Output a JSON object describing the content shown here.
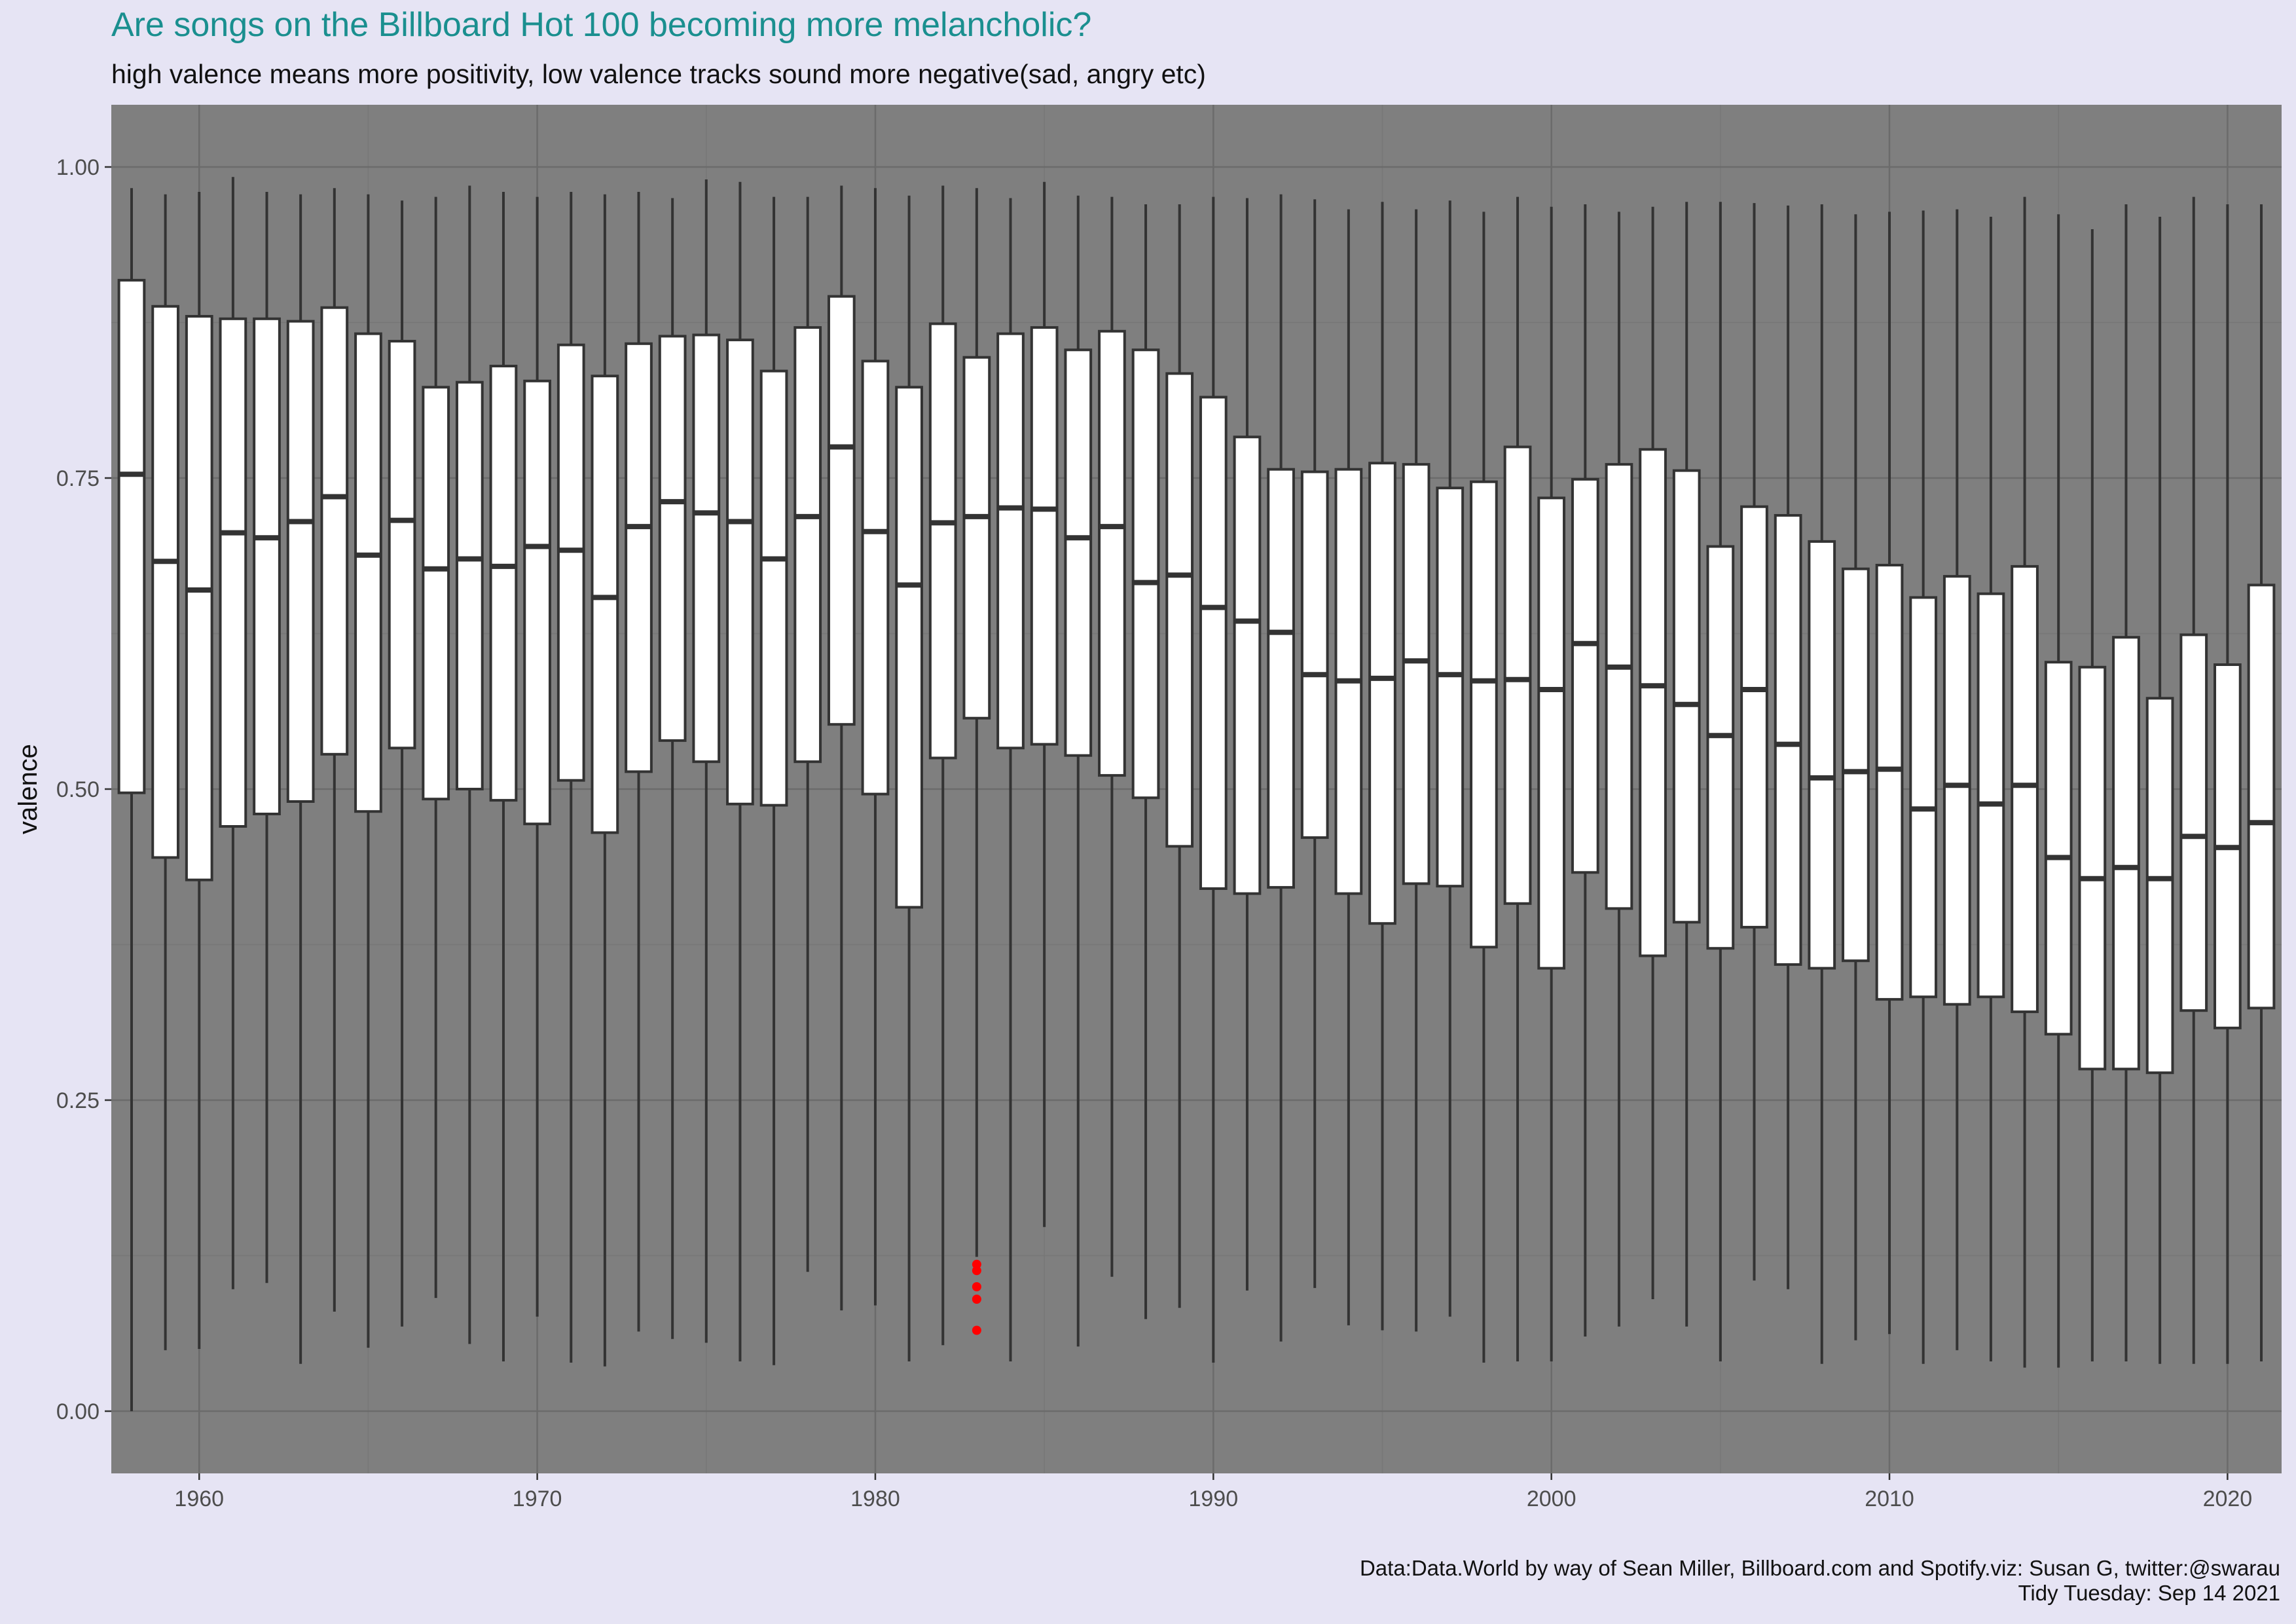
{
  "header": {
    "title": "Are songs on the Billboard Hot 100 becoming more melancholic?",
    "subtitle": "high valence means more positivity, low valence tracks sound more negative(sad, angry etc)"
  },
  "caption": {
    "line1": "Data:Data.World by way of Sean Miller, Billboard.com and Spotify.viz: Susan G, twitter:@swarau",
    "line2": "Tidy Tuesday: Sep 14 2021"
  },
  "colors": {
    "panel": "#7f7f7f",
    "box_fill": "#ffffff",
    "box_line": "#333333",
    "outlier": "#ff0000",
    "grid_major": "#6b6b6b",
    "grid_minor": "#777777",
    "title": "#1a8f8f"
  },
  "chart_data": {
    "type": "boxplot",
    "xlabel": "",
    "ylabel": "valence",
    "xlim": [
      1957.4,
      2021.6
    ],
    "ylim": [
      -0.05,
      1.05
    ],
    "x_ticks": [
      1960,
      1970,
      1980,
      1990,
      2000,
      2010,
      2020
    ],
    "y_ticks": [
      0.0,
      0.25,
      0.5,
      0.75,
      1.0
    ],
    "y_tick_labels": [
      "0.00",
      "0.25",
      "0.50",
      "0.75",
      "1.00"
    ],
    "grid": true,
    "legend": "none",
    "boxes": [
      {
        "year": 1958,
        "min": 0.0,
        "q1": 0.497,
        "median": 0.753,
        "q3": 0.909,
        "max": 0.983
      },
      {
        "year": 1959,
        "min": 0.049,
        "q1": 0.445,
        "median": 0.683,
        "q3": 0.888,
        "max": 0.978
      },
      {
        "year": 1960,
        "min": 0.05,
        "q1": 0.427,
        "median": 0.66,
        "q3": 0.88,
        "max": 0.98
      },
      {
        "year": 1961,
        "min": 0.098,
        "q1": 0.47,
        "median": 0.706,
        "q3": 0.878,
        "max": 0.992
      },
      {
        "year": 1962,
        "min": 0.103,
        "q1": 0.48,
        "median": 0.702,
        "q3": 0.878,
        "max": 0.98
      },
      {
        "year": 1963,
        "min": 0.038,
        "q1": 0.49,
        "median": 0.715,
        "q3": 0.876,
        "max": 0.978
      },
      {
        "year": 1964,
        "min": 0.08,
        "q1": 0.528,
        "median": 0.735,
        "q3": 0.887,
        "max": 0.983
      },
      {
        "year": 1965,
        "min": 0.051,
        "q1": 0.482,
        "median": 0.688,
        "q3": 0.866,
        "max": 0.978
      },
      {
        "year": 1966,
        "min": 0.068,
        "q1": 0.533,
        "median": 0.716,
        "q3": 0.86,
        "max": 0.973
      },
      {
        "year": 1967,
        "min": 0.091,
        "q1": 0.492,
        "median": 0.677,
        "q3": 0.823,
        "max": 0.976
      },
      {
        "year": 1968,
        "min": 0.054,
        "q1": 0.5,
        "median": 0.685,
        "q3": 0.827,
        "max": 0.985
      },
      {
        "year": 1969,
        "min": 0.04,
        "q1": 0.491,
        "median": 0.679,
        "q3": 0.84,
        "max": 0.98
      },
      {
        "year": 1970,
        "min": 0.076,
        "q1": 0.472,
        "median": 0.695,
        "q3": 0.828,
        "max": 0.976
      },
      {
        "year": 1971,
        "min": 0.039,
        "q1": 0.507,
        "median": 0.692,
        "q3": 0.857,
        "max": 0.98
      },
      {
        "year": 1972,
        "min": 0.036,
        "q1": 0.465,
        "median": 0.654,
        "q3": 0.832,
        "max": 0.978
      },
      {
        "year": 1973,
        "min": 0.064,
        "q1": 0.514,
        "median": 0.711,
        "q3": 0.858,
        "max": 0.98
      },
      {
        "year": 1974,
        "min": 0.058,
        "q1": 0.539,
        "median": 0.731,
        "q3": 0.864,
        "max": 0.975
      },
      {
        "year": 1975,
        "min": 0.055,
        "q1": 0.522,
        "median": 0.722,
        "q3": 0.865,
        "max": 0.99
      },
      {
        "year": 1976,
        "min": 0.04,
        "q1": 0.488,
        "median": 0.715,
        "q3": 0.861,
        "max": 0.988
      },
      {
        "year": 1977,
        "min": 0.037,
        "q1": 0.487,
        "median": 0.685,
        "q3": 0.836,
        "max": 0.976
      },
      {
        "year": 1978,
        "min": 0.112,
        "q1": 0.522,
        "median": 0.719,
        "q3": 0.871,
        "max": 0.976
      },
      {
        "year": 1979,
        "min": 0.081,
        "q1": 0.552,
        "median": 0.775,
        "q3": 0.896,
        "max": 0.985
      },
      {
        "year": 1980,
        "min": 0.085,
        "q1": 0.496,
        "median": 0.707,
        "q3": 0.844,
        "max": 0.983
      },
      {
        "year": 1981,
        "min": 0.04,
        "q1": 0.405,
        "median": 0.664,
        "q3": 0.823,
        "max": 0.977
      },
      {
        "year": 1982,
        "min": 0.053,
        "q1": 0.525,
        "median": 0.714,
        "q3": 0.874,
        "max": 0.985
      },
      {
        "year": 1983,
        "min": 0.124,
        "q1": 0.557,
        "median": 0.719,
        "q3": 0.847,
        "max": 0.983,
        "outliers": [
          0.065,
          0.09,
          0.1,
          0.113,
          0.118
        ]
      },
      {
        "year": 1984,
        "min": 0.04,
        "q1": 0.533,
        "median": 0.726,
        "q3": 0.866,
        "max": 0.975
      },
      {
        "year": 1985,
        "min": 0.148,
        "q1": 0.536,
        "median": 0.725,
        "q3": 0.871,
        "max": 0.988
      },
      {
        "year": 1986,
        "min": 0.052,
        "q1": 0.527,
        "median": 0.702,
        "q3": 0.853,
        "max": 0.977
      },
      {
        "year": 1987,
        "min": 0.108,
        "q1": 0.511,
        "median": 0.711,
        "q3": 0.868,
        "max": 0.976
      },
      {
        "year": 1988,
        "min": 0.074,
        "q1": 0.493,
        "median": 0.666,
        "q3": 0.853,
        "max": 0.97
      },
      {
        "year": 1989,
        "min": 0.083,
        "q1": 0.454,
        "median": 0.672,
        "q3": 0.834,
        "max": 0.97
      },
      {
        "year": 1990,
        "min": 0.039,
        "q1": 0.42,
        "median": 0.646,
        "q3": 0.815,
        "max": 0.976
      },
      {
        "year": 1991,
        "min": 0.097,
        "q1": 0.416,
        "median": 0.635,
        "q3": 0.783,
        "max": 0.975
      },
      {
        "year": 1992,
        "min": 0.056,
        "q1": 0.421,
        "median": 0.626,
        "q3": 0.757,
        "max": 0.978
      },
      {
        "year": 1993,
        "min": 0.099,
        "q1": 0.461,
        "median": 0.592,
        "q3": 0.755,
        "max": 0.974
      },
      {
        "year": 1994,
        "min": 0.069,
        "q1": 0.416,
        "median": 0.587,
        "q3": 0.757,
        "max": 0.966
      },
      {
        "year": 1995,
        "min": 0.065,
        "q1": 0.392,
        "median": 0.589,
        "q3": 0.762,
        "max": 0.972
      },
      {
        "year": 1996,
        "min": 0.064,
        "q1": 0.424,
        "median": 0.603,
        "q3": 0.761,
        "max": 0.966
      },
      {
        "year": 1997,
        "min": 0.076,
        "q1": 0.422,
        "median": 0.592,
        "q3": 0.742,
        "max": 0.973
      },
      {
        "year": 1998,
        "min": 0.039,
        "q1": 0.373,
        "median": 0.587,
        "q3": 0.747,
        "max": 0.964
      },
      {
        "year": 1999,
        "min": 0.04,
        "q1": 0.408,
        "median": 0.588,
        "q3": 0.775,
        "max": 0.976
      },
      {
        "year": 2000,
        "min": 0.04,
        "q1": 0.356,
        "median": 0.58,
        "q3": 0.734,
        "max": 0.968
      },
      {
        "year": 2001,
        "min": 0.06,
        "q1": 0.433,
        "median": 0.617,
        "q3": 0.749,
        "max": 0.97
      },
      {
        "year": 2002,
        "min": 0.068,
        "q1": 0.404,
        "median": 0.598,
        "q3": 0.761,
        "max": 0.964
      },
      {
        "year": 2003,
        "min": 0.09,
        "q1": 0.366,
        "median": 0.583,
        "q3": 0.773,
        "max": 0.968
      },
      {
        "year": 2004,
        "min": 0.068,
        "q1": 0.393,
        "median": 0.568,
        "q3": 0.756,
        "max": 0.972
      },
      {
        "year": 2005,
        "min": 0.04,
        "q1": 0.372,
        "median": 0.543,
        "q3": 0.695,
        "max": 0.972
      },
      {
        "year": 2006,
        "min": 0.105,
        "q1": 0.389,
        "median": 0.58,
        "q3": 0.727,
        "max": 0.971
      },
      {
        "year": 2007,
        "min": 0.098,
        "q1": 0.359,
        "median": 0.536,
        "q3": 0.72,
        "max": 0.969
      },
      {
        "year": 2008,
        "min": 0.038,
        "q1": 0.356,
        "median": 0.509,
        "q3": 0.699,
        "max": 0.97
      },
      {
        "year": 2009,
        "min": 0.057,
        "q1": 0.362,
        "median": 0.514,
        "q3": 0.677,
        "max": 0.962
      },
      {
        "year": 2010,
        "min": 0.062,
        "q1": 0.331,
        "median": 0.516,
        "q3": 0.68,
        "max": 0.964
      },
      {
        "year": 2011,
        "min": 0.038,
        "q1": 0.333,
        "median": 0.484,
        "q3": 0.654,
        "max": 0.965
      },
      {
        "year": 2012,
        "min": 0.049,
        "q1": 0.327,
        "median": 0.503,
        "q3": 0.671,
        "max": 0.966
      },
      {
        "year": 2013,
        "min": 0.04,
        "q1": 0.333,
        "median": 0.488,
        "q3": 0.657,
        "max": 0.96
      },
      {
        "year": 2014,
        "min": 0.035,
        "q1": 0.321,
        "median": 0.503,
        "q3": 0.679,
        "max": 0.976
      },
      {
        "year": 2015,
        "min": 0.035,
        "q1": 0.303,
        "median": 0.445,
        "q3": 0.602,
        "max": 0.962
      },
      {
        "year": 2016,
        "min": 0.04,
        "q1": 0.275,
        "median": 0.428,
        "q3": 0.598,
        "max": 0.95
      },
      {
        "year": 2017,
        "min": 0.04,
        "q1": 0.275,
        "median": 0.437,
        "q3": 0.622,
        "max": 0.97
      },
      {
        "year": 2018,
        "min": 0.038,
        "q1": 0.272,
        "median": 0.428,
        "q3": 0.573,
        "max": 0.96
      },
      {
        "year": 2019,
        "min": 0.038,
        "q1": 0.322,
        "median": 0.462,
        "q3": 0.624,
        "max": 0.976
      },
      {
        "year": 2020,
        "min": 0.038,
        "q1": 0.308,
        "median": 0.453,
        "q3": 0.6,
        "max": 0.97
      },
      {
        "year": 2021,
        "min": 0.04,
        "q1": 0.324,
        "median": 0.473,
        "q3": 0.664,
        "max": 0.97
      }
    ]
  }
}
